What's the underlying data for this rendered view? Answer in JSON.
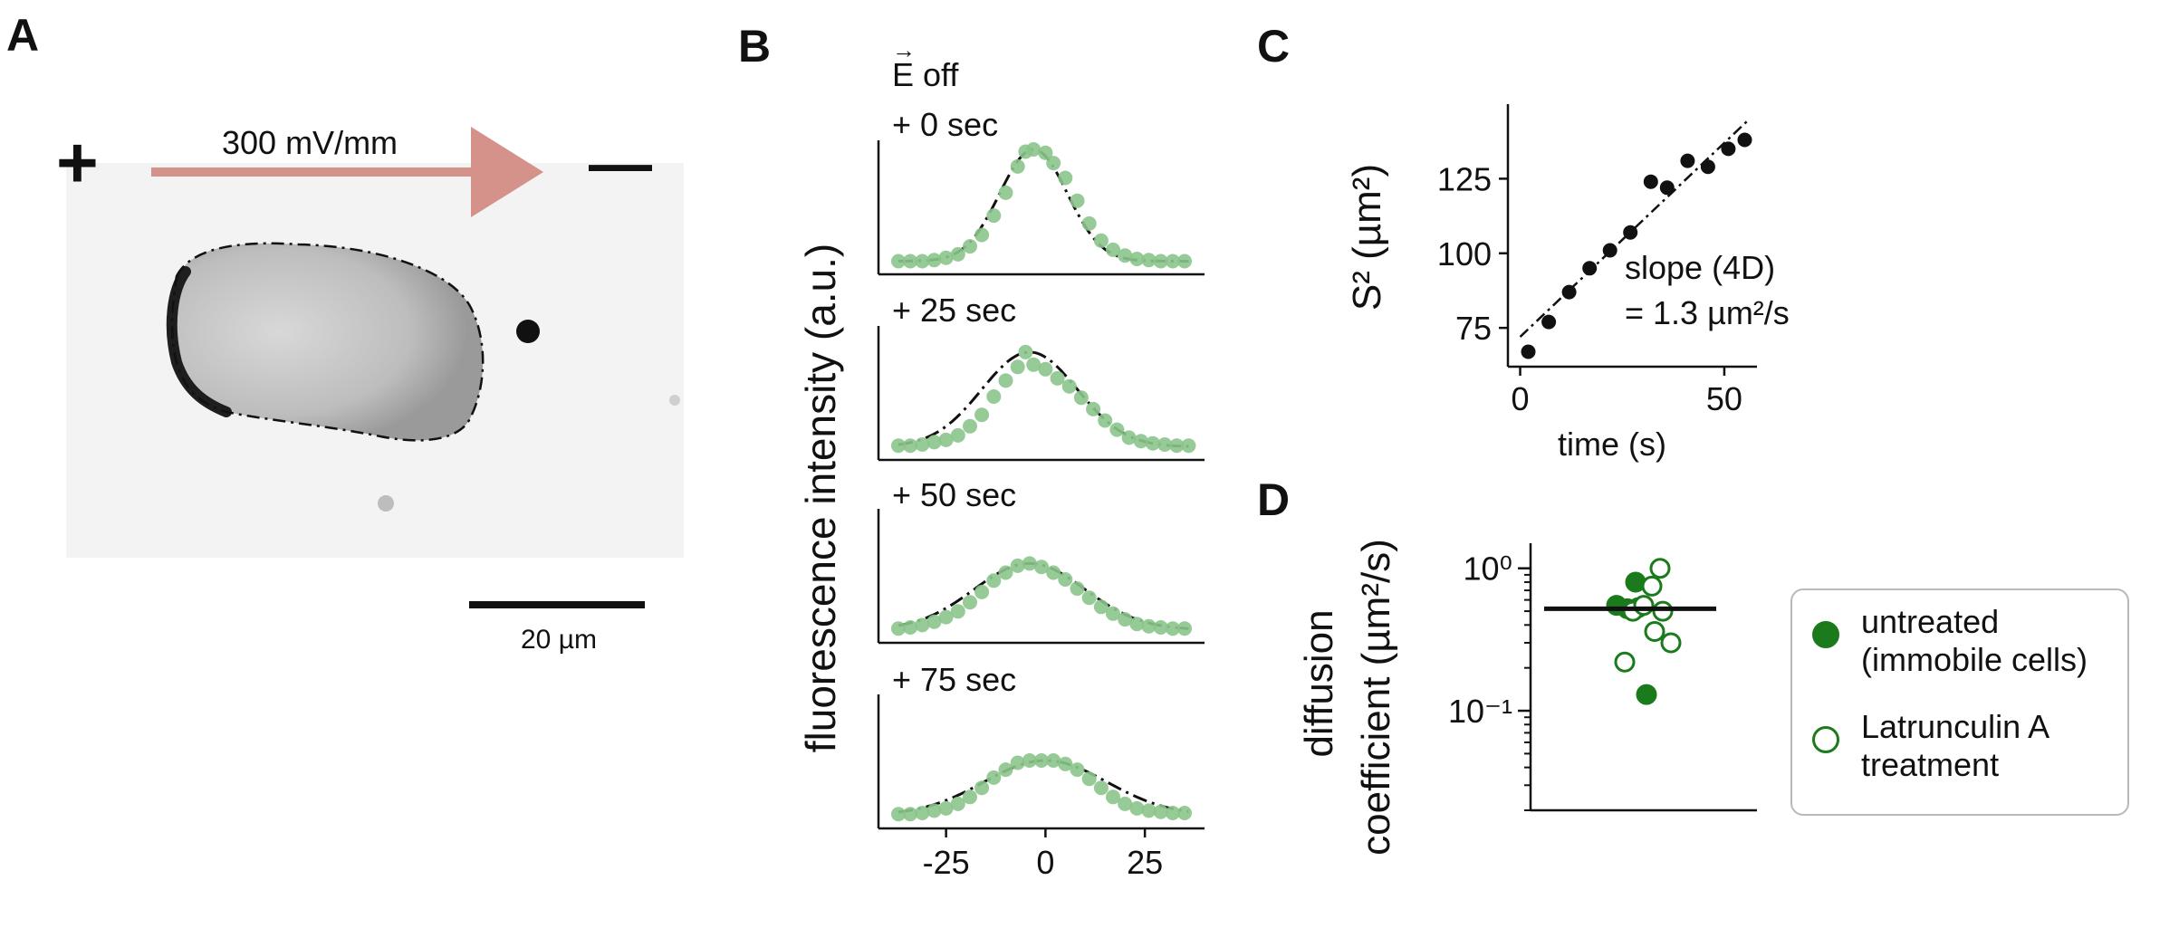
{
  "panels": {
    "A": "A",
    "B": "B",
    "C": "C",
    "D": "D"
  },
  "panel_a": {
    "field_label": "300 mV/mm",
    "plus_sign": "+",
    "minus_sign": "—",
    "scale_bar_label": "20 µm",
    "scale_bar_um": 20,
    "arrow_color": "#d4928b"
  },
  "colors": {
    "green_light": "#8bc48b",
    "green_dark": "#1b7a1b",
    "black": "#111111"
  },
  "chart_data": [
    {
      "panel": "B",
      "type": "scatter",
      "ylabel": "fluorescence intensity (a.u.)",
      "xticks": [
        -25,
        0,
        25
      ],
      "xlim": [
        -42,
        40
      ],
      "header": "E off",
      "series": [
        {
          "name": "+ 0 sec",
          "x": [
            -37,
            -34,
            -31,
            -28,
            -25,
            -22,
            -19,
            -16,
            -13,
            -10,
            -7,
            -5,
            -3,
            0,
            2,
            5,
            8,
            11,
            14,
            17,
            20,
            23,
            26,
            29,
            32,
            35
          ],
          "y": [
            0.02,
            0.02,
            0.02,
            0.03,
            0.05,
            0.08,
            0.15,
            0.25,
            0.42,
            0.62,
            0.85,
            0.98,
            1.0,
            0.97,
            0.88,
            0.75,
            0.55,
            0.35,
            0.2,
            0.12,
            0.07,
            0.04,
            0.03,
            0.02,
            0.02,
            0.02
          ],
          "fit_sigma": 8.5,
          "fit_mu": -3
        },
        {
          "name": "+ 25 sec",
          "x": [
            -37,
            -34,
            -31,
            -28,
            -25,
            -22,
            -19,
            -16,
            -13,
            -10,
            -7,
            -5,
            -3,
            0,
            3,
            6,
            9,
            12,
            15,
            18,
            21,
            24,
            27,
            30,
            33,
            36
          ],
          "y": [
            0.03,
            0.03,
            0.04,
            0.06,
            0.08,
            0.12,
            0.2,
            0.3,
            0.46,
            0.6,
            0.72,
            0.85,
            0.74,
            0.7,
            0.62,
            0.55,
            0.45,
            0.35,
            0.25,
            0.17,
            0.1,
            0.07,
            0.05,
            0.04,
            0.03,
            0.03
          ],
          "fit_sigma": 12,
          "fit_mu": -4
        },
        {
          "name": "+ 50 sec",
          "x": [
            -37,
            -34,
            -31,
            -28,
            -25,
            -22,
            -19,
            -16,
            -13,
            -10,
            -7,
            -4,
            -1,
            2,
            5,
            8,
            11,
            14,
            17,
            20,
            23,
            26,
            29,
            32,
            35
          ],
          "y": [
            0.03,
            0.04,
            0.06,
            0.09,
            0.13,
            0.18,
            0.26,
            0.35,
            0.45,
            0.52,
            0.58,
            0.6,
            0.57,
            0.52,
            0.46,
            0.38,
            0.3,
            0.22,
            0.16,
            0.11,
            0.07,
            0.05,
            0.04,
            0.03,
            0.03
          ],
          "fit_sigma": 14,
          "fit_mu": -4
        },
        {
          "name": "+ 75 sec",
          "x": [
            -37,
            -34,
            -31,
            -28,
            -25,
            -22,
            -19,
            -16,
            -13,
            -10,
            -7,
            -4,
            -1,
            2,
            5,
            8,
            11,
            14,
            17,
            20,
            23,
            26,
            29,
            32,
            35
          ],
          "y": [
            0.03,
            0.03,
            0.04,
            0.06,
            0.08,
            0.12,
            0.18,
            0.26,
            0.35,
            0.42,
            0.48,
            0.5,
            0.5,
            0.5,
            0.47,
            0.42,
            0.34,
            0.26,
            0.18,
            0.12,
            0.08,
            0.06,
            0.05,
            0.04,
            0.04
          ],
          "fit_sigma": 15.5,
          "fit_mu": 0
        }
      ]
    },
    {
      "panel": "C",
      "type": "scatter",
      "xlabel": "time (s)",
      "ylabel": "S² (µm²)",
      "xticks": [
        0,
        50
      ],
      "yticks": [
        75,
        100,
        125
      ],
      "xlim": [
        -3,
        58
      ],
      "ylim": [
        62,
        150
      ],
      "x": [
        2,
        7,
        12,
        17,
        22,
        27,
        32,
        36,
        41,
        46,
        51,
        55
      ],
      "y": [
        67,
        77,
        87,
        95,
        101,
        107,
        124,
        122,
        131,
        129,
        135,
        138
      ],
      "fit": {
        "slope": 1.3,
        "intercept": 72
      },
      "annotation_line1": "slope (4D)",
      "annotation_line2": "= 1.3 µm²/s"
    },
    {
      "panel": "D",
      "type": "scatter",
      "ylabel_line1": "diffusion",
      "ylabel_line2": "coefficient (µm²/s)",
      "yscale": "log",
      "ylim": [
        0.02,
        1.5
      ],
      "yticks": [
        0.1,
        1
      ],
      "ytick_labels": [
        "10⁻¹",
        "10⁰"
      ],
      "median": 0.52,
      "series": [
        {
          "name": "untreated\n(immobile cells)",
          "filled": true,
          "x": [
            -0.25,
            0.1,
            0.3,
            0.15,
            -0.05
          ],
          "y": [
            0.55,
            0.8,
            0.13,
            0.53,
            0.52
          ]
        },
        {
          "name": "Latrunculin A\ntreatment",
          "filled": false,
          "x": [
            0.55,
            0.4,
            0.05,
            0.45,
            0.75,
            -0.1,
            0.25,
            0.6
          ],
          "y": [
            1.0,
            0.75,
            0.5,
            0.36,
            0.3,
            0.22,
            0.55,
            0.5
          ]
        }
      ]
    }
  ]
}
